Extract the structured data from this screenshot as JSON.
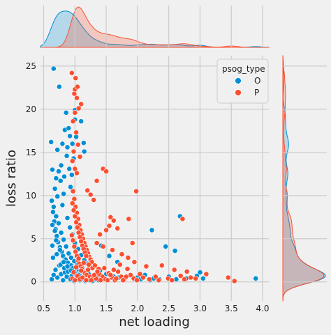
{
  "chart_data": {
    "type": "scatter",
    "title": "",
    "xlabel": "net loading",
    "ylabel": "loss ratio",
    "xlim": [
      0.45,
      4.1
    ],
    "ylim": [
      -2.2,
      26.2
    ],
    "xticks": [
      0.5,
      1.0,
      1.5,
      2.0,
      2.5,
      3.0,
      3.5,
      4.0
    ],
    "yticks": [
      0,
      5,
      10,
      15,
      20,
      25
    ],
    "grid": true,
    "legend": {
      "title": "psog_type",
      "placement": "top-right",
      "entries": [
        "O",
        "P"
      ]
    },
    "series": [
      {
        "name": "O",
        "color": "#008fd5",
        "points": [
          [
            0.62,
            16.2
          ],
          [
            0.66,
            24.7
          ],
          [
            0.7,
            12.0
          ],
          [
            0.72,
            15.3
          ],
          [
            0.75,
            22.6
          ],
          [
            0.78,
            13.5
          ],
          [
            0.8,
            16.0
          ],
          [
            0.82,
            10.2
          ],
          [
            0.84,
            17.6
          ],
          [
            0.86,
            19.6
          ],
          [
            0.88,
            15.6
          ],
          [
            0.9,
            17.8
          ],
          [
            0.92,
            16.9
          ],
          [
            0.93,
            11.0
          ],
          [
            0.95,
            12.4
          ],
          [
            0.96,
            16.0
          ],
          [
            0.98,
            14.3
          ],
          [
            1.0,
            18.8
          ],
          [
            1.0,
            19.9
          ],
          [
            1.02,
            16.8
          ],
          [
            1.1,
            18.6
          ],
          [
            1.14,
            16.1
          ],
          [
            1.15,
            15.1
          ],
          [
            0.64,
            13.0
          ],
          [
            0.68,
            10.8
          ],
          [
            0.74,
            12.8
          ],
          [
            0.77,
            11.7
          ],
          [
            0.83,
            12.2
          ],
          [
            0.87,
            14.6
          ],
          [
            0.91,
            13.1
          ],
          [
            0.63,
            9.4
          ],
          [
            0.65,
            8.1
          ],
          [
            0.67,
            7.0
          ],
          [
            0.69,
            6.1
          ],
          [
            0.71,
            5.3
          ],
          [
            0.73,
            4.6
          ],
          [
            0.76,
            4.0
          ],
          [
            0.79,
            3.5
          ],
          [
            0.81,
            3.0
          ],
          [
            0.85,
            2.6
          ],
          [
            0.89,
            2.2
          ],
          [
            0.94,
            1.9
          ],
          [
            0.97,
            1.6
          ],
          [
            1.03,
            1.4
          ],
          [
            1.06,
            1.2
          ],
          [
            1.08,
            1.0
          ],
          [
            0.66,
            8.7
          ],
          [
            0.7,
            7.6
          ],
          [
            0.74,
            6.8
          ],
          [
            0.78,
            5.7
          ],
          [
            0.82,
            4.9
          ],
          [
            0.86,
            4.1
          ],
          [
            0.9,
            3.3
          ],
          [
            0.94,
            2.8
          ],
          [
            0.99,
            2.4
          ],
          [
            1.04,
            2.0
          ],
          [
            1.12,
            1.6
          ],
          [
            1.18,
            1.2
          ],
          [
            1.22,
            0.9
          ],
          [
            1.3,
            0.7
          ],
          [
            1.36,
            0.6
          ],
          [
            0.64,
            6.6
          ],
          [
            0.68,
            5.9
          ],
          [
            0.72,
            9.9
          ],
          [
            0.8,
            8.9
          ],
          [
            0.88,
            7.4
          ],
          [
            0.92,
            6.3
          ],
          [
            0.96,
            5.5
          ],
          [
            1.0,
            4.5
          ],
          [
            1.05,
            3.8
          ],
          [
            1.1,
            3.1
          ],
          [
            1.15,
            2.5
          ],
          [
            1.2,
            2.1
          ],
          [
            1.25,
            1.7
          ],
          [
            1.4,
            1.3
          ],
          [
            1.5,
            0.9
          ],
          [
            1.62,
            0.6
          ],
          [
            1.7,
            0.5
          ],
          [
            1.8,
            0.4
          ],
          [
            1.9,
            0.7
          ],
          [
            2.0,
            0.5
          ],
          [
            2.05,
            0.3
          ],
          [
            2.12,
            0.8
          ],
          [
            2.2,
            0.2
          ],
          [
            2.26,
            0.4
          ],
          [
            2.35,
            0.3
          ],
          [
            2.5,
            0.6
          ],
          [
            2.62,
            0.3
          ],
          [
            2.78,
            0.4
          ],
          [
            2.95,
            0.7
          ],
          [
            3.0,
            1.1
          ],
          [
            3.05,
            0.4
          ],
          [
            3.89,
            0.4
          ],
          [
            2.23,
            6.0
          ],
          [
            2.45,
            4.1
          ],
          [
            2.6,
            3.6
          ],
          [
            2.68,
            7.6
          ],
          [
            1.42,
            4.2
          ],
          [
            1.55,
            3.0
          ],
          [
            1.68,
            2.3
          ],
          [
            0.63,
            0.3
          ],
          [
            0.66,
            0.8
          ],
          [
            0.69,
            1.4
          ],
          [
            0.72,
            0.5
          ],
          [
            0.75,
            1.9
          ],
          [
            0.78,
            0.9
          ],
          [
            0.81,
            0.2
          ],
          [
            0.84,
            1.1
          ],
          [
            0.87,
            0.6
          ],
          [
            0.9,
            1.5
          ],
          [
            0.93,
            0.3
          ],
          [
            0.96,
            0.8
          ],
          [
            0.99,
            0.1
          ],
          [
            1.02,
            0.6
          ],
          [
            1.05,
            0.4
          ],
          [
            1.08,
            0.2
          ],
          [
            1.11,
            0.5
          ],
          [
            1.14,
            0.3
          ],
          [
            1.17,
            0.1
          ],
          [
            1.2,
            0.4
          ],
          [
            1.23,
            0.2
          ],
          [
            1.28,
            0.1
          ],
          [
            1.33,
            0.3
          ],
          [
            1.38,
            0.2
          ],
          [
            0.65,
            2.8
          ],
          [
            0.71,
            3.2
          ],
          [
            0.77,
            2.0
          ],
          [
            0.83,
            1.6
          ],
          [
            0.89,
            1.2
          ],
          [
            0.95,
            0.7
          ],
          [
            1.01,
            0.9
          ],
          [
            1.07,
            0.5
          ],
          [
            0.64,
            4.2
          ],
          [
            0.7,
            4.8
          ],
          [
            0.76,
            3.7
          ],
          [
            0.82,
            2.3
          ],
          [
            0.88,
            1.8
          ],
          [
            0.94,
            1.3
          ],
          [
            1.0,
            1.0
          ],
          [
            1.06,
            0.8
          ]
        ]
      },
      {
        "name": "P",
        "color": "#fc4f30",
        "points": [
          [
            0.95,
            24.2
          ],
          [
            0.99,
            21.8
          ],
          [
            1.0,
            22.3
          ],
          [
            1.01,
            23.6
          ],
          [
            1.03,
            21.3
          ],
          [
            1.04,
            22.6
          ],
          [
            1.06,
            20.1
          ],
          [
            1.0,
            19.6
          ],
          [
            0.97,
            18.6
          ],
          [
            1.02,
            17.3
          ],
          [
            0.98,
            15.1
          ],
          [
            1.05,
            15.9
          ],
          [
            1.1,
            20.6
          ],
          [
            0.96,
            14.0
          ],
          [
            1.0,
            13.1
          ],
          [
            1.03,
            12.6
          ],
          [
            1.08,
            14.5
          ],
          [
            1.45,
            13.1
          ],
          [
            1.5,
            12.8
          ],
          [
            1.35,
            11.7
          ],
          [
            1.2,
            10.6
          ],
          [
            1.25,
            10.1
          ],
          [
            1.3,
            9.5
          ],
          [
            1.98,
            10.5
          ],
          [
            1.57,
            7.5
          ],
          [
            1.62,
            7.1
          ],
          [
            1.68,
            6.2
          ],
          [
            1.55,
            6.5
          ],
          [
            1.5,
            6.0
          ],
          [
            1.4,
            5.5
          ],
          [
            1.86,
            7.3
          ],
          [
            1.92,
            4.5
          ],
          [
            2.72,
            7.3
          ],
          [
            1.35,
            4.5
          ],
          [
            1.45,
            4.1
          ],
          [
            1.6,
            3.7
          ],
          [
            1.75,
            3.2
          ],
          [
            1.85,
            2.8
          ],
          [
            1.95,
            2.3
          ],
          [
            0.97,
            10.5
          ],
          [
            0.99,
            9.6
          ],
          [
            1.01,
            8.7
          ],
          [
            1.03,
            8.0
          ],
          [
            1.05,
            7.3
          ],
          [
            1.07,
            6.6
          ],
          [
            1.09,
            6.0
          ],
          [
            1.11,
            5.5
          ],
          [
            1.13,
            5.0
          ],
          [
            1.15,
            4.5
          ],
          [
            1.17,
            4.1
          ],
          [
            1.19,
            3.7
          ],
          [
            1.21,
            3.3
          ],
          [
            1.23,
            2.9
          ],
          [
            1.25,
            2.6
          ],
          [
            1.27,
            2.3
          ],
          [
            0.96,
            9.1
          ],
          [
            0.98,
            8.3
          ],
          [
            1.0,
            7.6
          ],
          [
            1.02,
            6.9
          ],
          [
            1.04,
            6.3
          ],
          [
            1.06,
            5.7
          ],
          [
            1.08,
            5.2
          ],
          [
            1.1,
            4.7
          ],
          [
            1.12,
            4.2
          ],
          [
            1.14,
            3.8
          ],
          [
            1.16,
            3.4
          ],
          [
            1.18,
            3.0
          ],
          [
            1.22,
            2.0
          ],
          [
            1.28,
            1.6
          ],
          [
            1.32,
            1.9
          ],
          [
            1.38,
            1.5
          ],
          [
            0.95,
            5.4
          ],
          [
            0.97,
            4.8
          ],
          [
            0.99,
            4.1
          ],
          [
            1.01,
            3.5
          ],
          [
            1.03,
            3.0
          ],
          [
            1.05,
            2.5
          ],
          [
            1.07,
            2.1
          ],
          [
            1.09,
            1.8
          ],
          [
            1.11,
            1.5
          ],
          [
            1.13,
            1.2
          ],
          [
            1.16,
            1.0
          ],
          [
            1.19,
            0.8
          ],
          [
            1.24,
            0.6
          ],
          [
            1.29,
            0.5
          ],
          [
            1.34,
            0.4
          ],
          [
            1.39,
            0.9
          ],
          [
            1.44,
            0.6
          ],
          [
            1.49,
            0.3
          ],
          [
            1.54,
            1.0
          ],
          [
            1.59,
            0.5
          ],
          [
            1.64,
            0.2
          ],
          [
            1.69,
            1.2
          ],
          [
            1.74,
            0.6
          ],
          [
            1.79,
            0.3
          ],
          [
            1.84,
            1.5
          ],
          [
            1.89,
            0.8
          ],
          [
            1.94,
            0.4
          ],
          [
            1.99,
            0.2
          ],
          [
            2.04,
            0.9
          ],
          [
            2.09,
            0.5
          ],
          [
            2.14,
            1.8
          ],
          [
            2.19,
            0.3
          ],
          [
            2.29,
            0.6
          ],
          [
            2.39,
            1.9
          ],
          [
            2.49,
            0.4
          ],
          [
            2.59,
            1.4
          ],
          [
            2.69,
            0.7
          ],
          [
            2.75,
            0.3
          ],
          [
            2.79,
            1.2
          ],
          [
            2.85,
            0.5
          ],
          [
            2.93,
            0.4
          ],
          [
            3.1,
            0.9
          ],
          [
            3.45,
            0.5
          ],
          [
            3.55,
            0.1
          ],
          [
            2.34,
            0.2
          ],
          [
            2.55,
            0.2
          ],
          [
            0.96,
            0.4
          ],
          [
            0.98,
            1.1
          ],
          [
            1.0,
            0.2
          ],
          [
            1.02,
            1.7
          ],
          [
            1.04,
            0.7
          ],
          [
            1.06,
            2.7
          ],
          [
            1.08,
            0.3
          ],
          [
            1.1,
            1.3
          ],
          [
            1.12,
            0.5
          ],
          [
            1.14,
            2.2
          ],
          [
            1.18,
            0.2
          ],
          [
            1.21,
            1.4
          ],
          [
            1.26,
            0.2
          ],
          [
            1.31,
            0.8
          ],
          [
            1.36,
            1.2
          ],
          [
            1.41,
            0.2
          ],
          [
            1.47,
            1.6
          ],
          [
            1.52,
            0.2
          ],
          [
            1.57,
            0.8
          ],
          [
            1.62,
            1.4
          ],
          [
            1.66,
            0.4
          ],
          [
            1.72,
            2.0
          ],
          [
            1.77,
            0.2
          ],
          [
            1.82,
            0.6
          ]
        ]
      }
    ]
  }
}
